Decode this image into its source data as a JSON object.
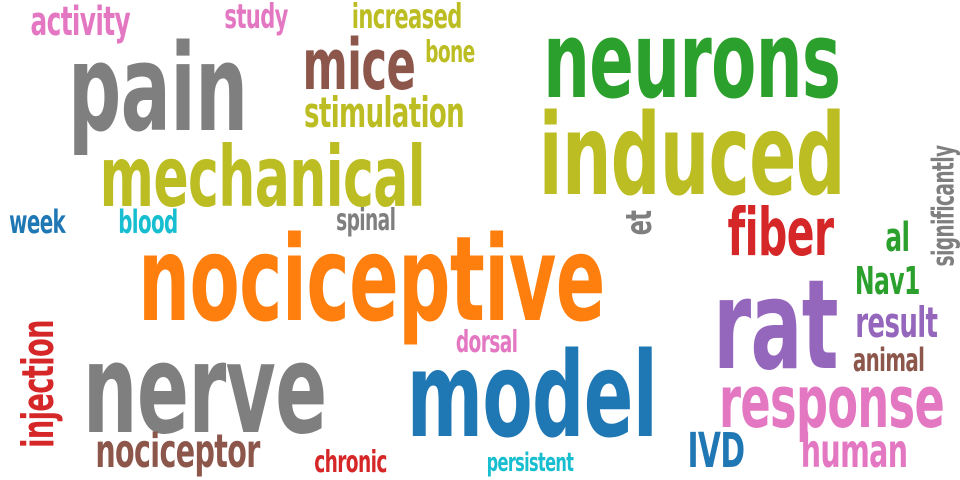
{
  "words": [
    {
      "text": "activity",
      "color": "#e377c2"
    },
    {
      "text": "study",
      "color": "#e377c2"
    },
    {
      "text": "increased",
      "color": "#bcbd22"
    },
    {
      "text": "neurons",
      "color": "#2ca02c"
    },
    {
      "text": "pain",
      "color": "#7f7f7f"
    },
    {
      "text": "mice",
      "color": "#8c564b"
    },
    {
      "text": "bone",
      "color": "#bcbd22"
    },
    {
      "text": "stimulation",
      "color": "#bcbd22"
    },
    {
      "text": "induced",
      "color": "#bcbd22"
    },
    {
      "text": "mechanical",
      "color": "#bcbd22"
    },
    {
      "text": "significantly",
      "color": "#7f7f7f"
    },
    {
      "text": "week",
      "color": "#1f77b4"
    },
    {
      "text": "blood",
      "color": "#17becf"
    },
    {
      "text": "spinal",
      "color": "#7f7f7f"
    },
    {
      "text": "et",
      "color": "#7f7f7f"
    },
    {
      "text": "fiber",
      "color": "#d62728"
    },
    {
      "text": "al",
      "color": "#2ca02c"
    },
    {
      "text": "nociceptive",
      "color": "#ff7f0e"
    },
    {
      "text": "Nav1",
      "color": "#2ca02c"
    },
    {
      "text": "rat",
      "color": "#9467bd"
    },
    {
      "text": "result",
      "color": "#9467bd"
    },
    {
      "text": "injection",
      "color": "#d62728"
    },
    {
      "text": "dorsal",
      "color": "#e377c2"
    },
    {
      "text": "animal",
      "color": "#8c564b"
    },
    {
      "text": "nerve",
      "color": "#7f7f7f"
    },
    {
      "text": "model",
      "color": "#1f77b4"
    },
    {
      "text": "response",
      "color": "#e377c2"
    },
    {
      "text": "nociceptor",
      "color": "#8c564b"
    },
    {
      "text": "IVD",
      "color": "#1f77b4"
    },
    {
      "text": "human",
      "color": "#e377c2"
    },
    {
      "text": "chronic",
      "color": "#d62728"
    },
    {
      "text": "persistent",
      "color": "#17becf"
    }
  ]
}
